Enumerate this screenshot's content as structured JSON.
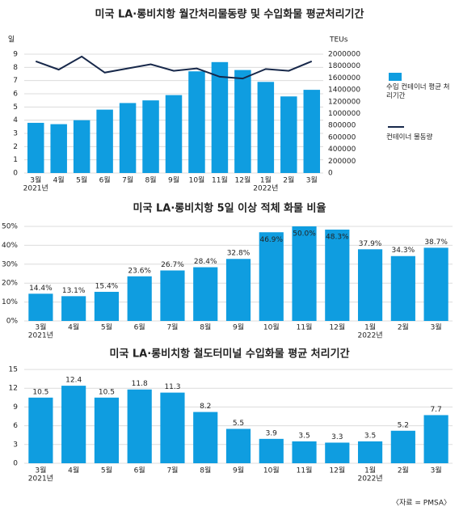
{
  "chart_data": [
    {
      "type": "bar",
      "title": "미국 LA·롱비치항 월간처리물동량 및 수입화물 평균처리기간",
      "categories": [
        "3월",
        "4월",
        "5월",
        "6월",
        "7월",
        "8월",
        "9월",
        "10월",
        "11월",
        "12월",
        "1월",
        "2월",
        "3월"
      ],
      "category_years": [
        "2021년",
        null,
        null,
        null,
        null,
        null,
        null,
        null,
        null,
        null,
        "2022년",
        null,
        null
      ],
      "ylabel": "일",
      "y2label": "TEUs",
      "ylim": [
        0,
        9
      ],
      "yticks": [
        0,
        1,
        2,
        3,
        4,
        5,
        6,
        7,
        8,
        9
      ],
      "y2lim": [
        0,
        2000000
      ],
      "y2ticks": [
        0,
        200000,
        400000,
        600000,
        800000,
        1000000,
        1200000,
        1400000,
        1600000,
        1800000,
        2000000
      ],
      "grid": true,
      "legend": "right",
      "series": [
        {
          "name": "수입 컨테이너 평균 처리기간",
          "type": "bar",
          "color": "#0f9de0",
          "values": [
            3.8,
            3.7,
            4.0,
            4.8,
            5.3,
            5.5,
            5.9,
            7.7,
            8.4,
            7.8,
            6.9,
            5.8,
            6.3
          ]
        },
        {
          "name": "컨테이너 물동량",
          "type": "line",
          "axis": "y2",
          "color": "#17284a",
          "values": [
            1880000,
            1740000,
            1960000,
            1690000,
            1760000,
            1830000,
            1720000,
            1760000,
            1620000,
            1590000,
            1750000,
            1720000,
            1880000
          ]
        }
      ]
    },
    {
      "type": "bar",
      "title": "미국 LA·롱비치항 5일 이상 적체 화물 비율",
      "categories": [
        "3월",
        "4월",
        "5월",
        "6월",
        "7월",
        "8월",
        "9월",
        "10월",
        "11월",
        "12월",
        "1월",
        "2월",
        "3월"
      ],
      "category_years": [
        "2021년",
        null,
        null,
        null,
        null,
        null,
        null,
        null,
        null,
        null,
        "2022년",
        null,
        null
      ],
      "ylim": [
        0,
        50
      ],
      "yticks": [
        {
          "value": 0,
          "label": "0%"
        },
        {
          "value": 10,
          "label": "10%"
        },
        {
          "value": 20,
          "label": "20%"
        },
        {
          "value": 30,
          "label": "30%"
        },
        {
          "value": 40,
          "label": "40%"
        },
        {
          "value": 50,
          "label": "50%"
        }
      ],
      "grid": true,
      "data_labels": true,
      "color": "#0f9de0",
      "values": [
        14.4,
        13.1,
        15.4,
        23.6,
        26.7,
        28.4,
        32.8,
        46.9,
        50.0,
        48.3,
        37.9,
        34.3,
        38.7
      ],
      "value_labels": [
        "14.4%",
        "13.1%",
        "15.4%",
        "23.6%",
        "26.7%",
        "28.4%",
        "32.8%",
        "46.9%",
        "50.0%",
        "48.3%",
        "37.9%",
        "34.3%",
        "38.7%"
      ]
    },
    {
      "type": "bar",
      "title": "미국 LA·롱비치항 철도터미널 수입화물 평균 처리기간",
      "categories": [
        "3월",
        "4월",
        "5월",
        "6월",
        "7월",
        "8월",
        "9월",
        "10월",
        "11월",
        "12월",
        "1월",
        "2월",
        "3월"
      ],
      "category_years": [
        "2021년",
        null,
        null,
        null,
        null,
        null,
        null,
        null,
        null,
        null,
        "2022년",
        null,
        null
      ],
      "ylim": [
        0,
        15
      ],
      "yticks": [
        0,
        3,
        6,
        9,
        12,
        15
      ],
      "grid": true,
      "data_labels": true,
      "color": "#0f9de0",
      "values": [
        10.5,
        12.4,
        10.5,
        11.8,
        11.3,
        8.2,
        5.5,
        3.9,
        3.5,
        3.3,
        3.5,
        5.2,
        7.7
      ],
      "source": "〈자료 = PMSA〉"
    }
  ]
}
